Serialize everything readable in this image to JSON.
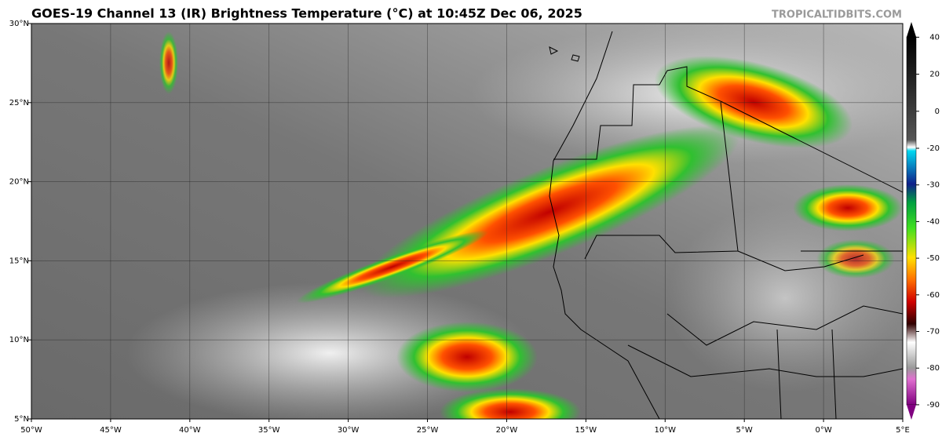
{
  "title": "GOES-19 Channel 13 (IR) Brightness Temperature (°C) at 10:45Z Dec 06, 2025",
  "source": "TROPICALTIDBITS.COM",
  "map": {
    "xlim": [
      -50,
      5
    ],
    "ylim": [
      5,
      30
    ],
    "xticks": [
      {
        "value": -50,
        "label": "50°W"
      },
      {
        "value": -45,
        "label": "45°W"
      },
      {
        "value": -40,
        "label": "40°W"
      },
      {
        "value": -35,
        "label": "35°W"
      },
      {
        "value": -30,
        "label": "30°W"
      },
      {
        "value": -25,
        "label": "25°W"
      },
      {
        "value": -20,
        "label": "20°W"
      },
      {
        "value": -15,
        "label": "15°W"
      },
      {
        "value": -10,
        "label": "10°W"
      },
      {
        "value": -5,
        "label": "5°W"
      },
      {
        "value": 0,
        "label": "0°W"
      },
      {
        "value": 5,
        "label": "5°E"
      }
    ],
    "yticks": [
      {
        "value": 5,
        "label": "5°N"
      },
      {
        "value": 10,
        "label": "10°N"
      },
      {
        "value": 15,
        "label": "15°N"
      },
      {
        "value": 20,
        "label": "20°N"
      },
      {
        "value": 25,
        "label": "25°N"
      },
      {
        "value": 30,
        "label": "30°N"
      }
    ]
  },
  "colorbar": {
    "ticks": [
      40,
      20,
      0,
      -20,
      -30,
      -40,
      -50,
      -60,
      -70,
      -80,
      -90
    ]
  }
}
